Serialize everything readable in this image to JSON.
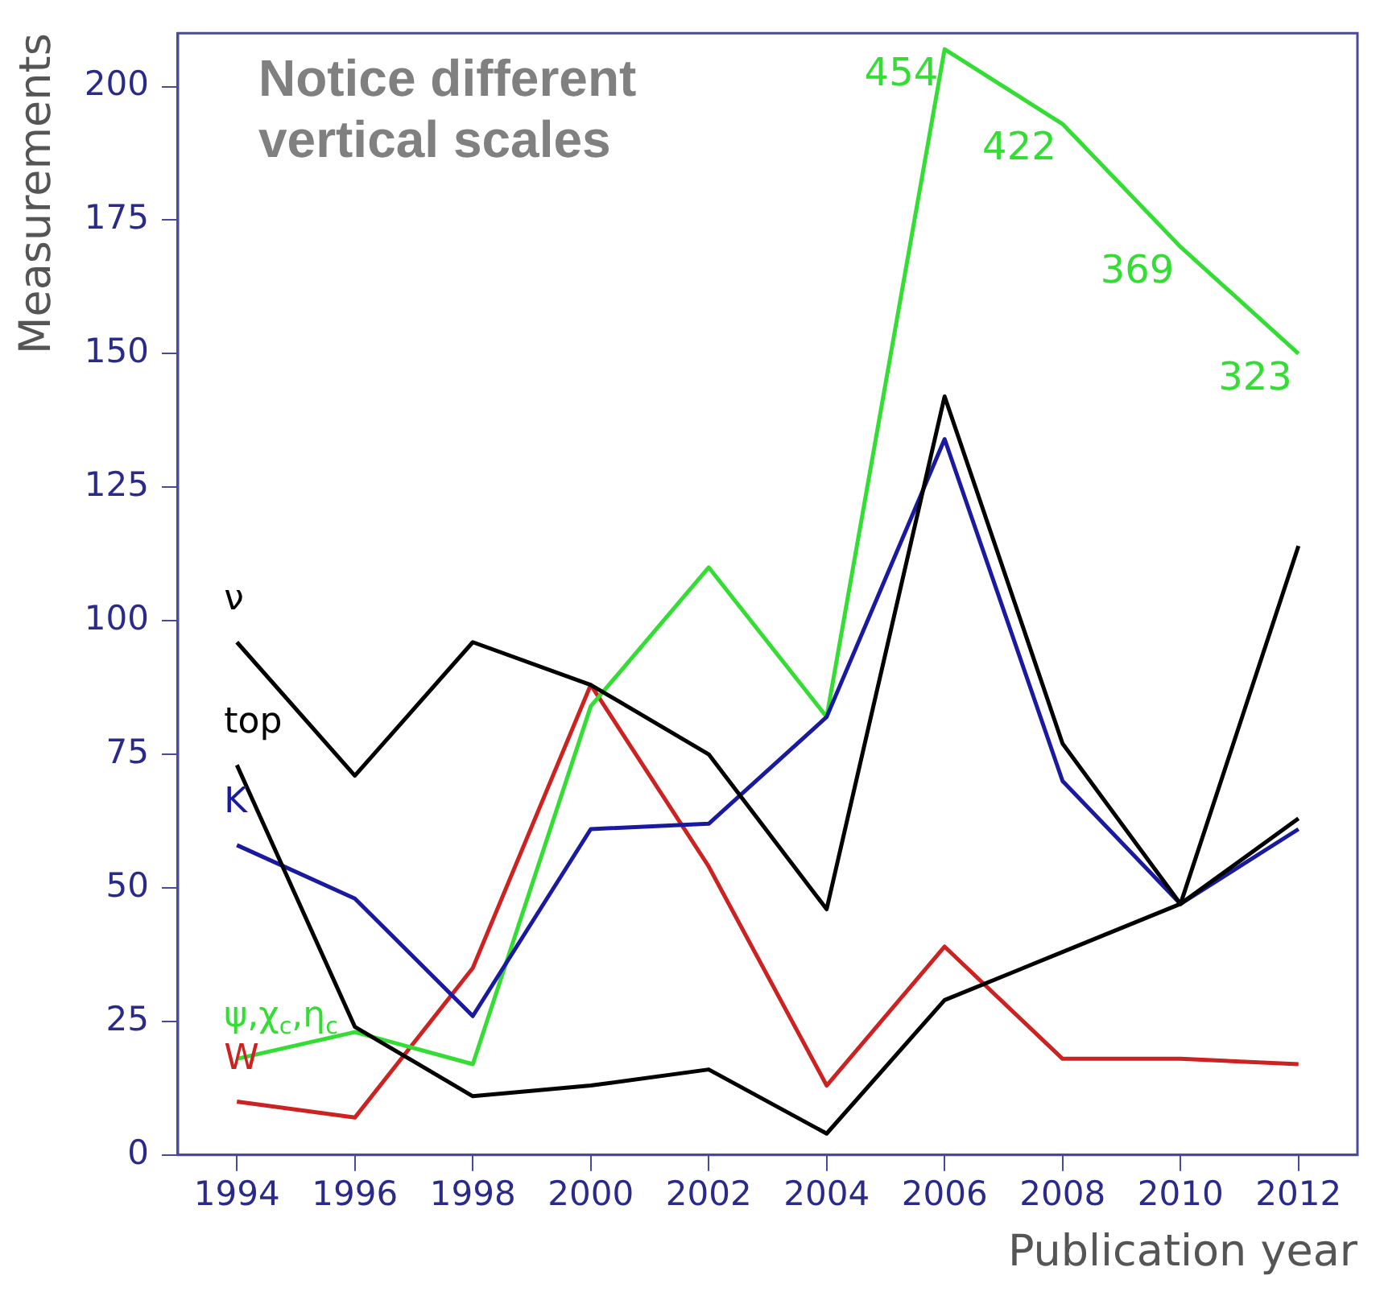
{
  "chart_data": {
    "type": "line",
    "xlabel": "Publication year",
    "ylabel": "Measurements",
    "x": [
      1994,
      1996,
      1998,
      2000,
      2002,
      2004,
      2006,
      2008,
      2010,
      2012
    ],
    "xlim": [
      1993,
      2013
    ],
    "xticks": [
      1994,
      1996,
      1998,
      2000,
      2002,
      2004,
      2006,
      2008,
      2010,
      2012
    ],
    "ylim": [
      0,
      210
    ],
    "yticks": [
      0,
      25,
      50,
      75,
      100,
      125,
      150,
      175,
      200
    ],
    "grid": false,
    "legend": false,
    "marker": "none",
    "line_style": "solid",
    "series": [
      {
        "name": "ν",
        "color": "#000000",
        "values": [
          96,
          71,
          96,
          88,
          75,
          46,
          142,
          77,
          47,
          114
        ]
      },
      {
        "name": "top",
        "color": "#000000",
        "values": [
          73,
          24,
          11,
          13,
          16,
          4,
          29,
          38,
          47,
          63
        ]
      },
      {
        "name": "K",
        "color": "#1a1aa0",
        "values": [
          58,
          48,
          26,
          61,
          62,
          82,
          134,
          70,
          47,
          61
        ]
      },
      {
        "name": "ψ,χ$_{c}$,η$_{c}$",
        "color": "#33dd33",
        "values": [
          18,
          23,
          17,
          84,
          110,
          82,
          207,
          193,
          170,
          150
        ]
      },
      {
        "name": "W",
        "color": "#cc2222",
        "values": [
          10,
          7,
          35,
          88,
          54,
          13,
          39,
          18,
          18,
          17
        ]
      }
    ],
    "annotations": [
      "Notice different vertical scales",
      {
        "text": "454",
        "x": 2006,
        "y": 207
      },
      {
        "text": "422",
        "x": 2008,
        "y": 193
      },
      {
        "text": "369",
        "x": 2010,
        "y": 170
      },
      {
        "text": "323",
        "x": 2012,
        "y": 150
      }
    ]
  }
}
